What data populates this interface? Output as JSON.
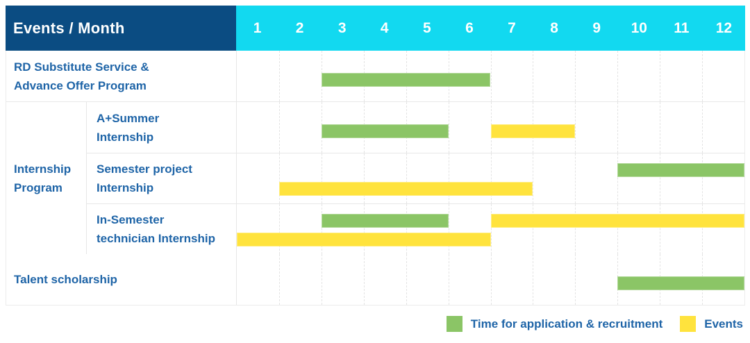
{
  "header": {
    "corner_label": "Events / Month"
  },
  "months": [
    "1",
    "2",
    "3",
    "4",
    "5",
    "6",
    "7",
    "8",
    "9",
    "10",
    "11",
    "12"
  ],
  "group": {
    "label": "Internship Program",
    "lines": [
      "Internship",
      "Program"
    ]
  },
  "colors": {
    "navy": "#0b4c82",
    "cyan": "#12d9f0",
    "application_green": "#8bc566",
    "event_yellow": "#ffe33d",
    "label_blue": "#1e64a7"
  },
  "legend": [
    {
      "series": "application",
      "label": "Time for application & recruitment"
    },
    {
      "series": "event",
      "label": "Events"
    }
  ],
  "chart_data": {
    "type": "gantt",
    "title": "Events / Month",
    "x_axis": {
      "label": "Month",
      "ticks": [
        1,
        2,
        3,
        4,
        5,
        6,
        7,
        8,
        9,
        10,
        11,
        12
      ],
      "range": [
        1,
        12
      ]
    },
    "legend": [
      {
        "series": "application",
        "label": "Time for application & recruitment",
        "color": "#8bc566"
      },
      {
        "series": "event",
        "label": "Events",
        "color": "#ffe33d"
      }
    ],
    "rows": [
      {
        "group": "",
        "label": "RD Substitute Service & Advance Offer Program",
        "label_lines": [
          "RD Substitute Service &",
          "Advance Offer Program"
        ],
        "bars": [
          {
            "series": "application",
            "start_month": 3,
            "end_month": 6,
            "lane": "center"
          }
        ]
      },
      {
        "group": "Internship Program",
        "label": "A+Summer Internship",
        "label_lines": [
          "A+Summer",
          "Internship"
        ],
        "bars": [
          {
            "series": "application",
            "start_month": 3,
            "end_month": 5,
            "lane": "center"
          },
          {
            "series": "event",
            "start_month": 7,
            "end_month": 8,
            "lane": "center"
          }
        ]
      },
      {
        "group": "Internship Program",
        "label": "Semester project Internship",
        "label_lines": [
          "Semester project",
          "Internship"
        ],
        "bars": [
          {
            "series": "application",
            "start_month": 10,
            "end_month": 12,
            "lane": "top"
          },
          {
            "series": "event",
            "start_month": 2,
            "end_month": 7,
            "lane": "bottom"
          }
        ]
      },
      {
        "group": "Internship Program",
        "label": "In-Semester technician Internship",
        "label_lines": [
          "In-Semester",
          "technician Internship"
        ],
        "bars": [
          {
            "series": "application",
            "start_month": 3,
            "end_month": 5,
            "lane": "top"
          },
          {
            "series": "event",
            "start_month": 7,
            "end_month": 12,
            "lane": "top"
          },
          {
            "series": "event",
            "start_month": 1,
            "end_month": 6,
            "lane": "bottom"
          }
        ]
      },
      {
        "group": "",
        "label": "Talent scholarship",
        "label_lines": [
          "Talent scholarship"
        ],
        "bars": [
          {
            "series": "application",
            "start_month": 10,
            "end_month": 12,
            "lane": "center"
          }
        ]
      }
    ]
  }
}
